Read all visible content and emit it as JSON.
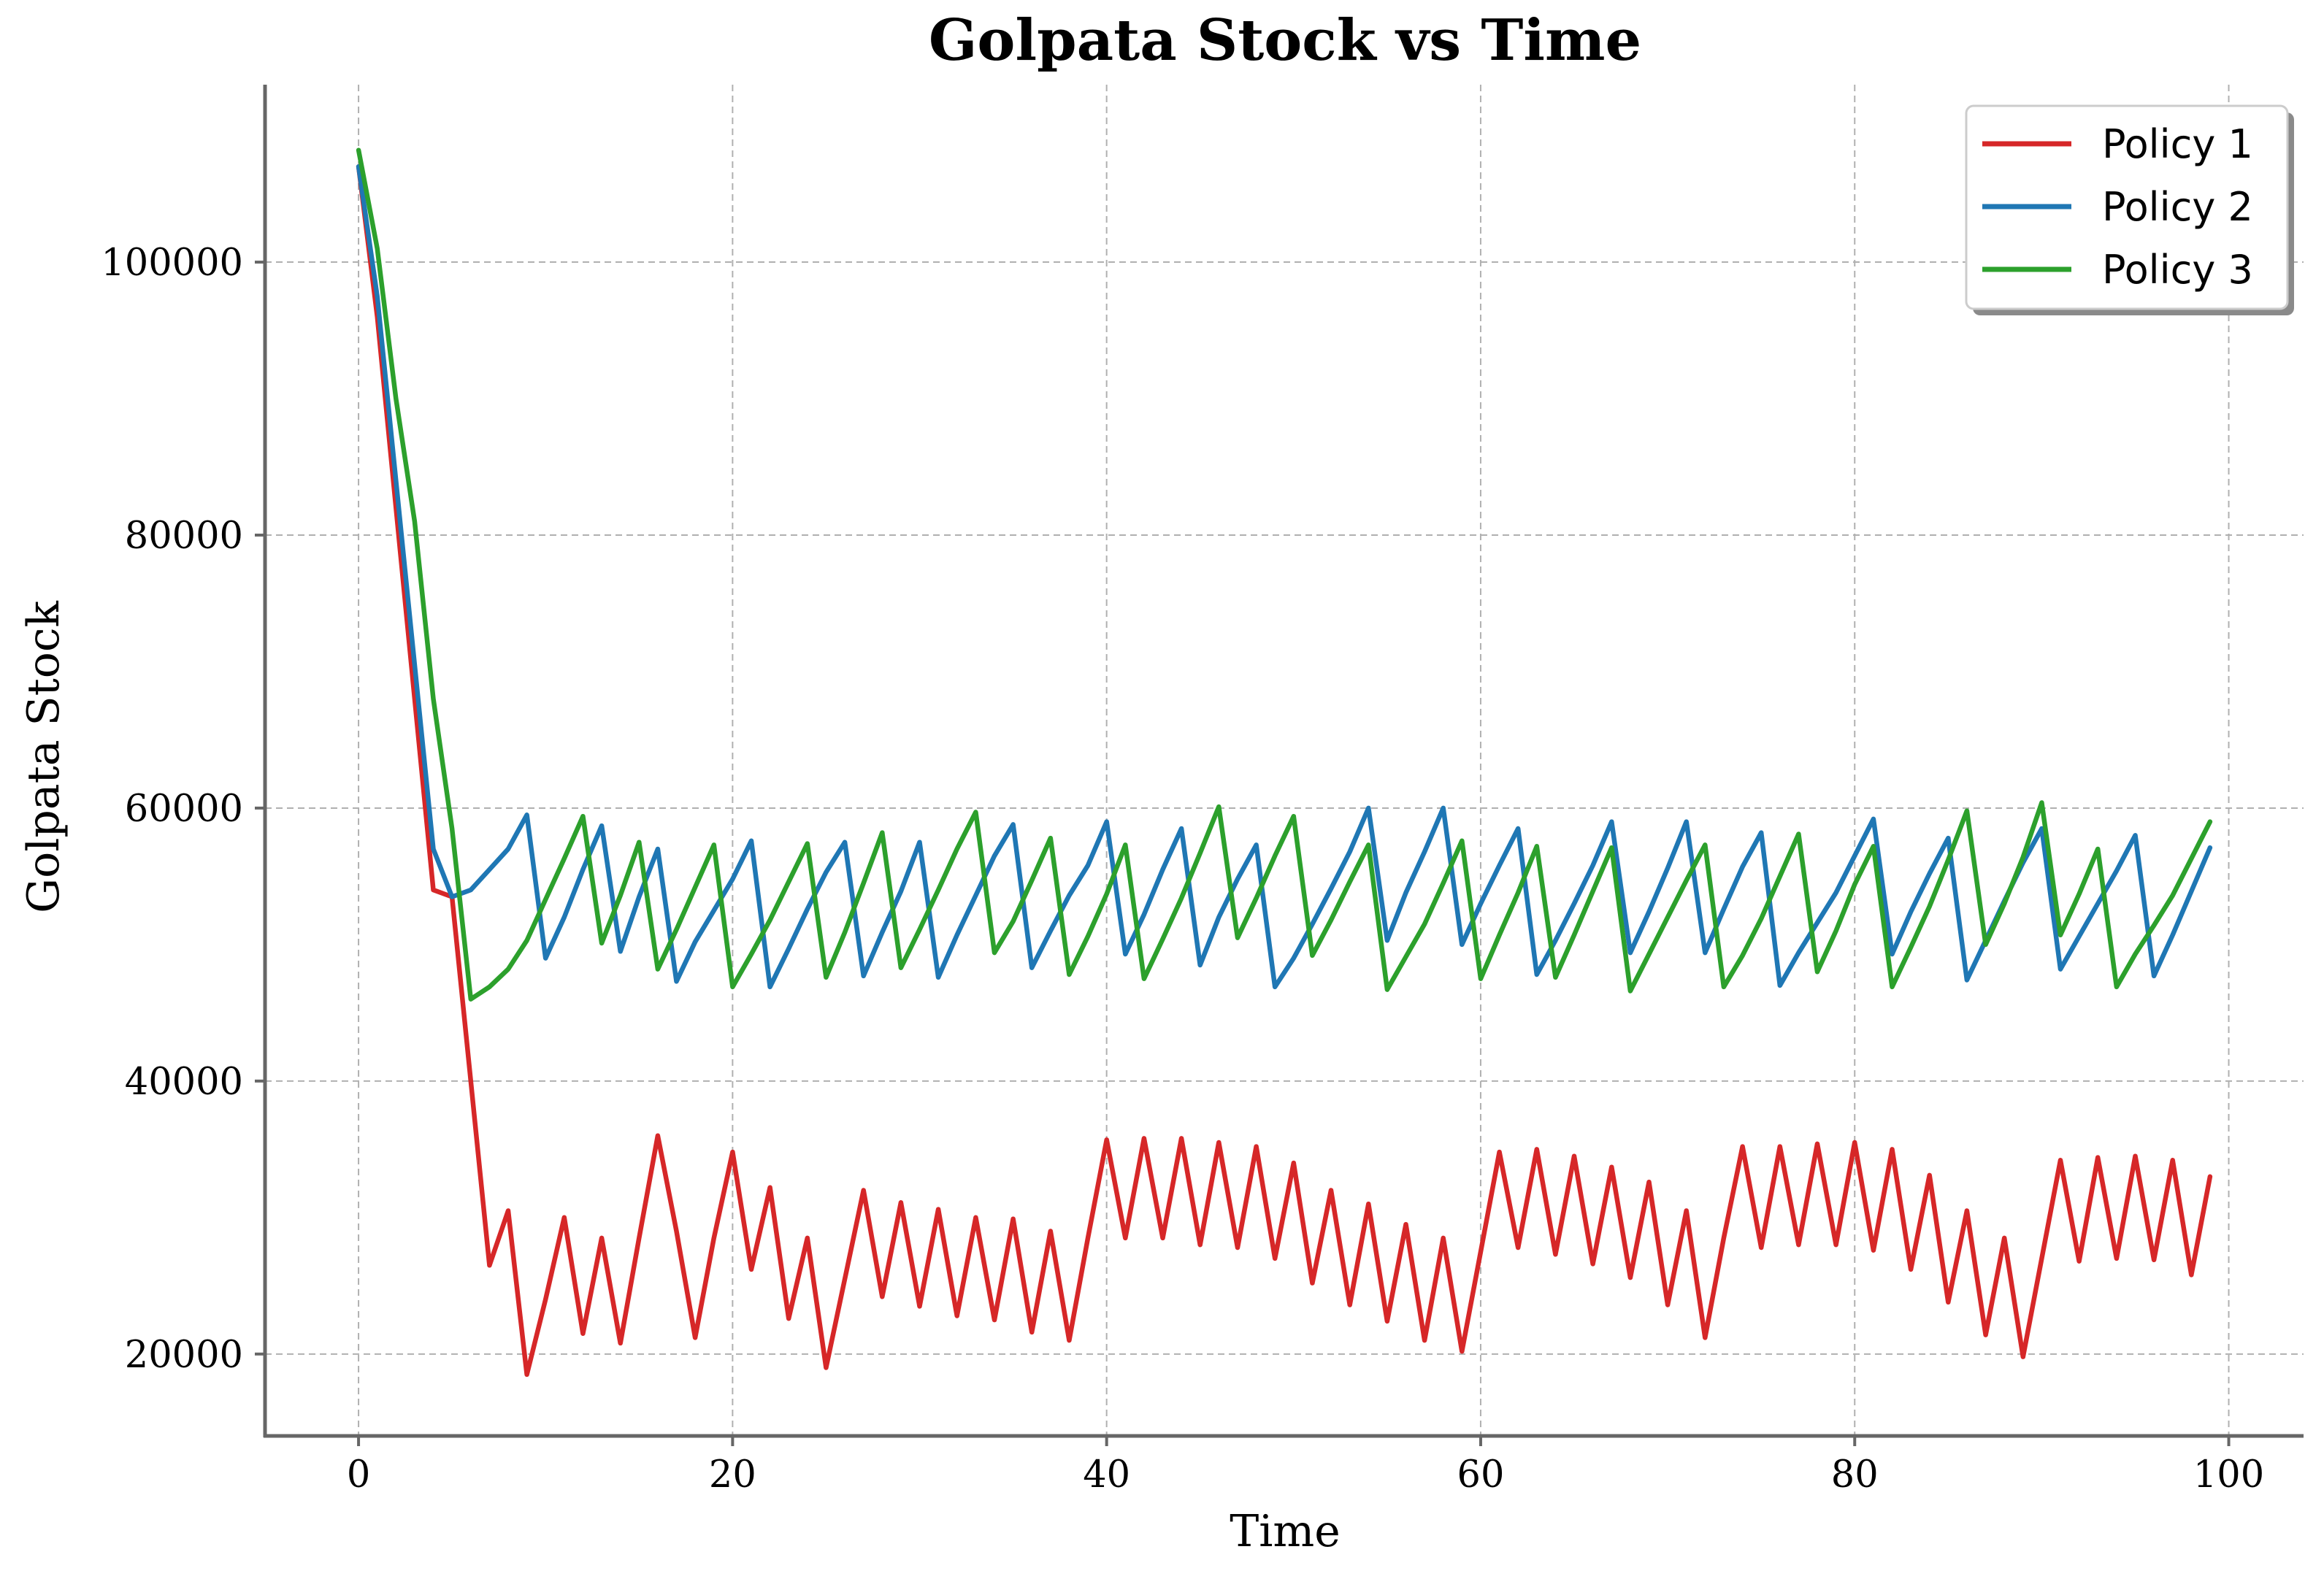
{
  "chart_data": {
    "type": "line",
    "title": "Golpata Stock vs Time",
    "xlabel": "Time",
    "ylabel": "Golpata Stock",
    "xlim": [
      -5,
      104
    ],
    "ylim": [
      14000,
      113000
    ],
    "xticks": [
      0,
      20,
      40,
      60,
      80,
      100
    ],
    "yticks": [
      20000,
      40000,
      60000,
      80000,
      100000
    ],
    "xtick_labels": [
      "0",
      "20",
      "40",
      "60",
      "80",
      "100"
    ],
    "ytick_labels": [
      "20000",
      "40000",
      "60000",
      "80000",
      "100000"
    ],
    "grid": true,
    "legend_position": "top-right",
    "legend_items": [
      "Policy 1",
      "Policy 2",
      "Policy 3"
    ],
    "x": [
      0,
      1,
      2,
      3,
      4,
      5,
      6,
      7,
      8,
      9,
      10,
      11,
      12,
      13,
      14,
      15,
      16,
      17,
      18,
      19,
      20,
      21,
      22,
      23,
      24,
      25,
      26,
      27,
      28,
      29,
      30,
      31,
      32,
      33,
      34,
      35,
      36,
      37,
      38,
      39,
      40,
      41,
      42,
      43,
      44,
      45,
      46,
      47,
      48,
      49,
      50,
      51,
      52,
      53,
      54,
      55,
      56,
      57,
      58,
      59,
      60,
      61,
      62,
      63,
      64,
      65,
      66,
      67,
      68,
      69,
      70,
      71,
      72,
      73,
      74,
      75,
      76,
      77,
      78,
      79,
      80,
      81,
      82,
      83,
      84,
      85,
      86,
      87,
      88,
      89,
      90,
      91,
      92,
      93,
      94,
      95,
      96,
      97,
      98,
      99
    ],
    "series": [
      {
        "name": "Policy 1",
        "color": "#d62728",
        "values": [
          107000,
          96000,
          82000,
          68000,
          54000,
          53500,
          40000,
          26500,
          30500,
          18500,
          24000,
          30000,
          21500,
          28500,
          20800,
          28500,
          36000,
          29000,
          21200,
          28500,
          34800,
          26200,
          32200,
          22600,
          28500,
          19000,
          25500,
          32000,
          24200,
          31100,
          23500,
          30600,
          22800,
          30000,
          22500,
          29900,
          21600,
          29000,
          21000,
          28500,
          35700,
          28500,
          35800,
          28500,
          35800,
          28000,
          35500,
          27800,
          35200,
          27000,
          34000,
          25200,
          32000,
          23600,
          31000,
          22400,
          29500,
          21000,
          28500,
          20200,
          27500,
          34800,
          27800,
          35000,
          27300,
          34500,
          26600,
          33700,
          25600,
          32600,
          23600,
          30500,
          21200,
          28500,
          35200,
          27800,
          35200,
          28000,
          35400,
          28000,
          35500,
          27600,
          35000,
          26200,
          33100,
          23800,
          30500,
          21400,
          28500,
          19800,
          27000,
          34200,
          26800,
          34400,
          27000,
          34500,
          26900,
          34200,
          25800,
          33000
        ]
      },
      {
        "name": "Policy 2",
        "color": "#1f77b4",
        "values": [
          107000,
          97500,
          84000,
          70500,
          57000,
          53500,
          54000,
          55500,
          57000,
          59500,
          49000,
          52000,
          55500,
          58700,
          49500,
          53500,
          57000,
          47300,
          50200,
          52500,
          54800,
          57600,
          46900,
          49700,
          52600,
          55300,
          57500,
          47700,
          50900,
          53900,
          57500,
          47600,
          50700,
          53600,
          56500,
          58800,
          48300,
          51000,
          53600,
          55800,
          59000,
          49300,
          52200,
          55500,
          58500,
          48500,
          52000,
          54800,
          57300,
          46900,
          49000,
          51500,
          54100,
          56800,
          60000,
          50300,
          53800,
          56800,
          60000,
          50000,
          53000,
          55800,
          58500,
          47800,
          50300,
          53000,
          55800,
          59000,
          49400,
          52400,
          55600,
          59000,
          49400,
          52600,
          55700,
          58200,
          47000,
          49400,
          51600,
          53800,
          56500,
          59200,
          49300,
          52400,
          55200,
          57800,
          47400,
          50300,
          53200,
          56000,
          58500,
          48200,
          50600,
          53000,
          55400,
          58000,
          47700,
          50700,
          53900,
          57100
        ]
      },
      {
        "name": "Policy 3",
        "color": "#2ca02c",
        "values": [
          108200,
          101000,
          90000,
          81000,
          68000,
          58500,
          46000,
          46900,
          48200,
          50300,
          53300,
          56300,
          59400,
          50100,
          53600,
          57500,
          48200,
          51100,
          54200,
          57300,
          46900,
          49300,
          51800,
          54600,
          57400,
          47600,
          50900,
          54500,
          58200,
          48300,
          51100,
          54000,
          57000,
          59700,
          49400,
          51700,
          54700,
          57800,
          47800,
          50600,
          53700,
          57300,
          47500,
          50400,
          53400,
          56700,
          60100,
          50500,
          53400,
          56500,
          59400,
          49200,
          51800,
          54600,
          57300,
          46700,
          49100,
          51500,
          54500,
          57600,
          47500,
          50700,
          53800,
          57200,
          47600,
          50700,
          53900,
          57100,
          46600,
          49300,
          52000,
          54700,
          57300,
          46900,
          49200,
          51900,
          55000,
          58100,
          48000,
          51000,
          54400,
          57200,
          46900,
          49800,
          52800,
          56200,
          59800,
          50000,
          53000,
          56400,
          60400,
          50700,
          53700,
          57000,
          46900,
          49300,
          51400,
          53600,
          56300,
          59000
        ]
      }
    ]
  }
}
